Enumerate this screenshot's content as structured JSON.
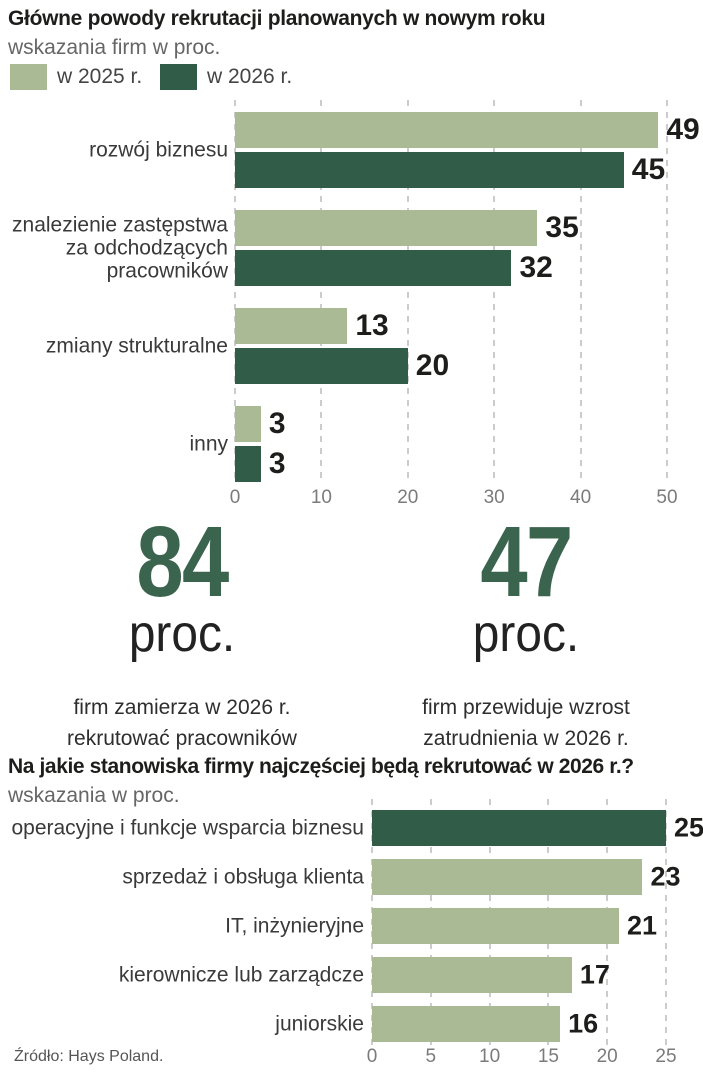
{
  "colors": {
    "light_green_2025": "#a9ba94",
    "dark_green_2026": "#315c47",
    "stat_number_green": "#3a644e",
    "text_dark": "#1d1d1b",
    "text_gray": "#666666",
    "axis_gray": "#7b7b7b",
    "gridline_gray": "#cccccc"
  },
  "stats": [
    {
      "value": "84",
      "unit": "proc.",
      "caption_line1": "firm zamierza w 2026 r.",
      "caption_line2": "rekrutować pracowników"
    },
    {
      "value": "47",
      "unit": "proc.",
      "caption_line1": "firm przewiduje wzrost",
      "caption_line2": "zatrudnienia w 2026 r."
    }
  ],
  "source": "Źródło: Hays Poland.",
  "chart_data": [
    {
      "type": "bar",
      "orientation": "horizontal",
      "title": "Główne powody rekrutacji planowanych w nowym roku",
      "subtitle": "wskazania firm w proc.",
      "categories": [
        "rozwój biznesu",
        "znalezienie zastępstwa\nza odchodzących\npracowników",
        "zmiany strukturalne",
        "inny"
      ],
      "series": [
        {
          "name": "w 2025 r.",
          "color": "#a9ba94",
          "values": [
            49,
            35,
            13,
            3
          ]
        },
        {
          "name": "w 2026 r.",
          "color": "#315c47",
          "values": [
            45,
            32,
            20,
            3
          ]
        }
      ],
      "xlim": [
        0,
        50
      ],
      "xticks": [
        0,
        10,
        20,
        30,
        40,
        50
      ],
      "legend_position": "top-left",
      "grid": "dashed-vertical",
      "value_labels": "end"
    },
    {
      "type": "bar",
      "orientation": "horizontal",
      "title": "Na jakie stanowiska firmy najczęściej będą rekrutować w 2026 r.?",
      "subtitle": "wskazania w proc.",
      "categories": [
        "operacyjne i funkcje wsparcia biznesu",
        "sprzedaż i obsługa klienta",
        "IT, inżynieryjne",
        "kierownicze lub zarządcze",
        "juniorskie"
      ],
      "values": [
        25,
        23,
        21,
        17,
        16
      ],
      "bar_colors": [
        "#315c47",
        "#a9ba94",
        "#a9ba94",
        "#a9ba94",
        "#a9ba94"
      ],
      "xlim": [
        0,
        25
      ],
      "xticks": [
        0,
        5,
        10,
        15,
        20,
        25
      ],
      "grid": "dashed-vertical",
      "value_labels": "end"
    }
  ]
}
